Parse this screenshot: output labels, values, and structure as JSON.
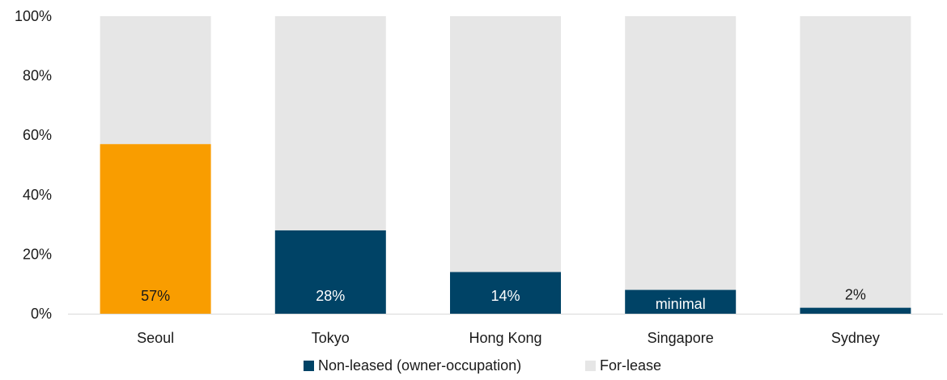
{
  "chart_data": {
    "type": "bar",
    "stacked": true,
    "categories": [
      "Seoul",
      "Tokyo",
      "Hong Kong",
      "Singapore",
      "Sydney"
    ],
    "series": [
      {
        "name": "Non-leased (owner-occupation)",
        "values": [
          57,
          28,
          14,
          8,
          2
        ],
        "data_labels": [
          "57%",
          "28%",
          "14%",
          "minimal",
          "2%"
        ],
        "color": "#004366",
        "highlight": {
          "index": 0,
          "color": "#F99D00"
        }
      },
      {
        "name": "For-lease",
        "values": [
          43,
          72,
          86,
          92,
          98
        ],
        "color": "#E6E6E6"
      }
    ],
    "ylim": [
      0,
      100
    ],
    "yticks": [
      "0%",
      "20%",
      "40%",
      "60%",
      "80%",
      "100%"
    ],
    "grid": false,
    "legend_position": "bottom"
  }
}
